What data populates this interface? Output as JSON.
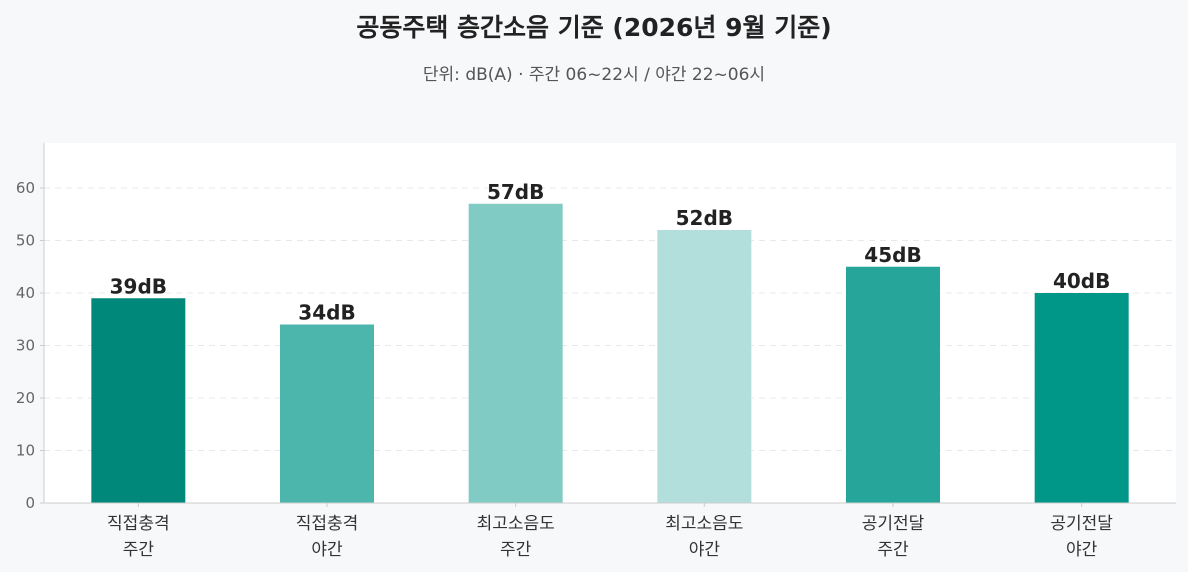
{
  "title": "공동주택 층간소음 기준 (2026년 9월 기준)",
  "subtitle": "단위: dB(A) · 주간 06~22시 / 야간 22~06시",
  "chart_data": {
    "type": "bar",
    "categories": [
      [
        "직접충격",
        "주간"
      ],
      [
        "직접충격",
        "야간"
      ],
      [
        "최고소음도",
        "주간"
      ],
      [
        "최고소음도",
        "야간"
      ],
      [
        "공기전달",
        "주간"
      ],
      [
        "공기전달",
        "야간"
      ]
    ],
    "values": [
      39,
      34,
      57,
      52,
      45,
      40
    ],
    "data_labels": [
      "39dB",
      "34dB",
      "57dB",
      "52dB",
      "45dB",
      "40dB"
    ],
    "colors": [
      "#00897b",
      "#4db6ac",
      "#80cbc4",
      "#b2dfdb",
      "#26a69a",
      "#009688"
    ],
    "yticks": [
      0,
      10,
      20,
      30,
      40,
      50,
      60
    ],
    "ylim": [
      0,
      68
    ],
    "grid": true,
    "xlabel": "",
    "ylabel": ""
  }
}
